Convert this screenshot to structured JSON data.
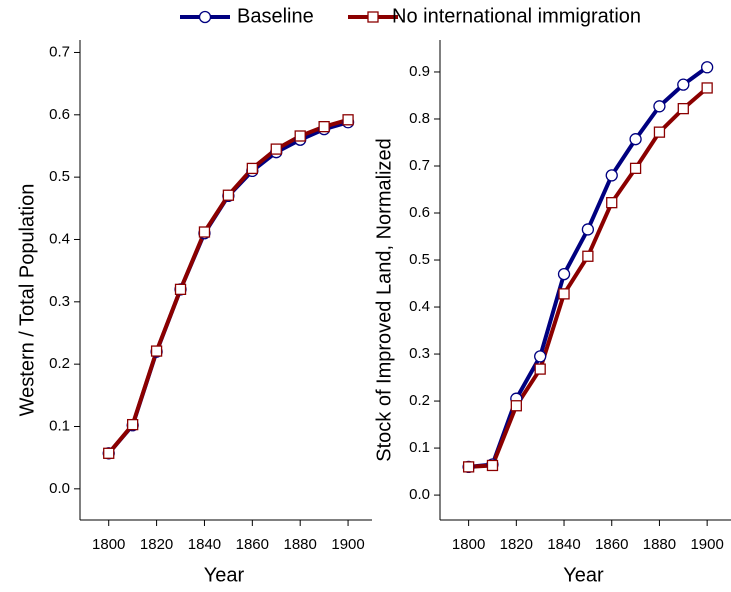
{
  "chart_data": [
    {
      "type": "line",
      "ylabel": "Western / Total Population",
      "xlabel": "Year",
      "x": [
        1800,
        1810,
        1820,
        1830,
        1840,
        1850,
        1860,
        1870,
        1880,
        1890,
        1900
      ],
      "series": [
        {
          "name": "Baseline",
          "color": "#000080",
          "values": [
            0.057,
            0.102,
            0.22,
            0.32,
            0.41,
            0.47,
            0.51,
            0.54,
            0.56,
            0.577,
            0.588
          ]
        },
        {
          "name": "No international immigration",
          "color": "#8b0000",
          "values": [
            0.057,
            0.103,
            0.221,
            0.32,
            0.412,
            0.471,
            0.514,
            0.545,
            0.566,
            0.581,
            0.592
          ]
        }
      ],
      "xlim": [
        1788,
        1910
      ],
      "ylim": [
        -0.05,
        0.72
      ],
      "xticks": [
        1800,
        1820,
        1840,
        1860,
        1880,
        1900
      ],
      "yticks": [
        {
          "value": 0,
          "label": "0.0"
        },
        0.1,
        0.2,
        0.3,
        0.4,
        0.5,
        0.6,
        0.7
      ]
    },
    {
      "type": "line",
      "ylabel": "Stock of Improved Land, Normalized",
      "xlabel": "Year",
      "x": [
        1800,
        1810,
        1820,
        1830,
        1840,
        1850,
        1860,
        1870,
        1880,
        1890,
        1900
      ],
      "series": [
        {
          "name": "Baseline",
          "color": "#000080",
          "values": [
            0.06,
            0.065,
            0.205,
            0.295,
            0.47,
            0.565,
            0.68,
            0.757,
            0.827,
            0.873,
            0.91
          ]
        },
        {
          "name": "No international immigration",
          "color": "#8b0000",
          "values": [
            0.06,
            0.063,
            0.19,
            0.268,
            0.428,
            0.508,
            0.622,
            0.695,
            0.772,
            0.822,
            0.866
          ]
        }
      ],
      "xlim": [
        1788,
        1910
      ],
      "ylim": [
        -0.053,
        0.968
      ],
      "xticks": [
        1800,
        1820,
        1840,
        1860,
        1880,
        1900
      ],
      "yticks": [
        {
          "value": 0,
          "label": "0.0"
        },
        0.1,
        0.2,
        0.3,
        0.4,
        0.5,
        0.6,
        0.7,
        0.8,
        0.9
      ]
    }
  ]
}
